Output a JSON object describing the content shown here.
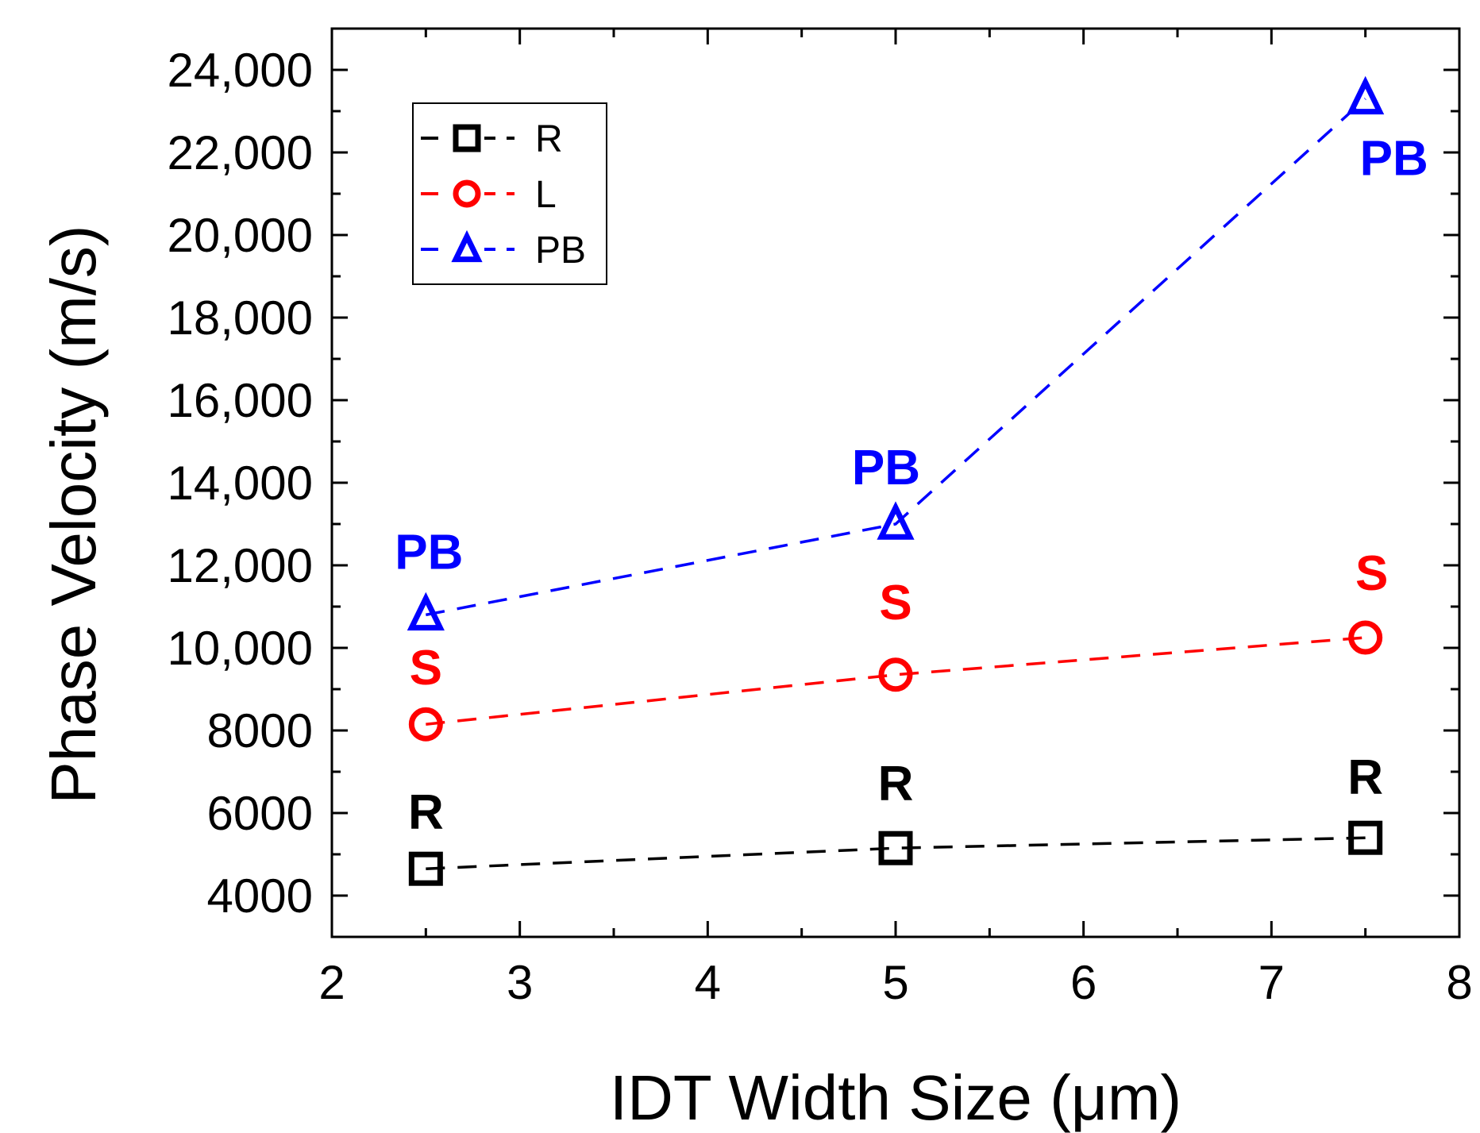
{
  "chart_data": {
    "type": "line",
    "title": "",
    "xlabel": "IDT Width Size (μm)",
    "ylabel": "Phase Velocity (m/s)",
    "xlim": [
      2,
      8
    ],
    "ylim": [
      3000,
      25000
    ],
    "x_ticks": [
      2,
      3,
      4,
      5,
      6,
      7,
      8
    ],
    "x_tick_labels": [
      "2",
      "3",
      "4",
      "5",
      "6",
      "7",
      "8"
    ],
    "y_ticks": [
      4000,
      6000,
      8000,
      10000,
      12000,
      14000,
      16000,
      18000,
      20000,
      22000,
      24000
    ],
    "y_tick_labels": [
      "4000",
      "6000",
      "8000",
      "10,000",
      "12,000",
      "14,000",
      "16,000",
      "18,000",
      "20,000",
      "22,000",
      "24,000"
    ],
    "grid": false,
    "legend_position": "top-left",
    "x": [
      2.5,
      5,
      7.5
    ],
    "series": [
      {
        "name": "R",
        "marker": "square",
        "color": "#000000",
        "values": [
          4650,
          5150,
          5400
        ],
        "point_labels": [
          "R",
          "R",
          "R"
        ]
      },
      {
        "name": "L",
        "marker": "circle",
        "color": "#ff0000",
        "values": [
          8150,
          9350,
          10250
        ],
        "point_labels": [
          "S",
          "S",
          "S"
        ]
      },
      {
        "name": "PB",
        "marker": "triangle",
        "color": "#0000ff",
        "values": [
          10800,
          13000,
          23300
        ],
        "point_labels": [
          "PB",
          "PB",
          "PB"
        ]
      }
    ]
  }
}
